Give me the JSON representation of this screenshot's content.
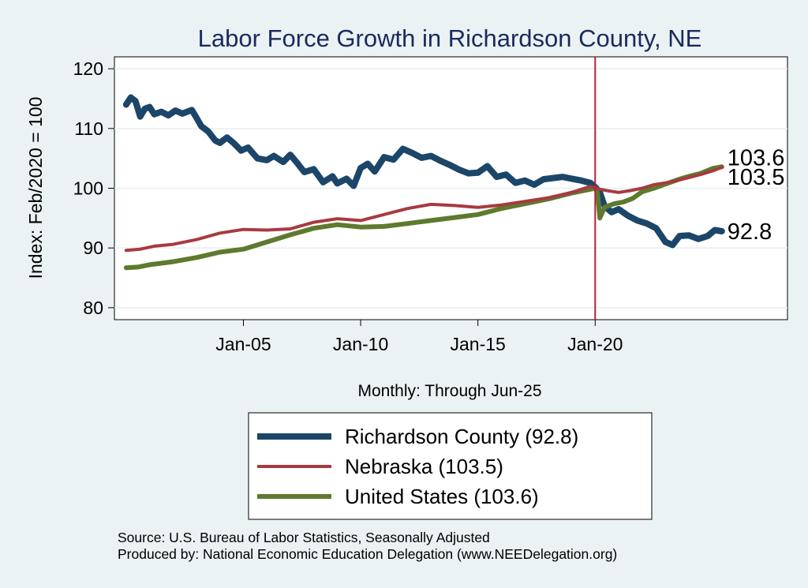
{
  "chart_data": {
    "type": "line",
    "title": "Labor Force Growth in Richardson  County, NE",
    "ylabel": "Index: Feb/2020 = 100",
    "xlabel_note": "Monthly: Through Jun-25",
    "ylim": [
      78,
      122
    ],
    "xlim": [
      1999.5,
      2028.2
    ],
    "yticks": [
      80,
      90,
      100,
      110,
      120
    ],
    "xticks": [
      {
        "value": 2005.0,
        "label": "Jan-05"
      },
      {
        "value": 2010.0,
        "label": "Jan-10"
      },
      {
        "value": 2015.0,
        "label": "Jan-15"
      },
      {
        "value": 2020.0,
        "label": "Jan-20"
      }
    ],
    "reference_line": {
      "x": 2020.0,
      "color": "#b5203a"
    },
    "grid": "horizontal",
    "series": [
      {
        "name": "Richardson  County",
        "end_value_label": "92.8",
        "color": "#1b4669",
        "width": 8,
        "points": [
          [
            2000.0,
            114.0
          ],
          [
            2000.2,
            115.2
          ],
          [
            2000.4,
            114.6
          ],
          [
            2000.6,
            112.0
          ],
          [
            2000.8,
            113.3
          ],
          [
            2001.0,
            113.6
          ],
          [
            2001.2,
            112.4
          ],
          [
            2001.5,
            112.8
          ],
          [
            2001.8,
            112.2
          ],
          [
            2002.1,
            113.0
          ],
          [
            2002.4,
            112.5
          ],
          [
            2002.8,
            113.1
          ],
          [
            2003.0,
            111.8
          ],
          [
            2003.2,
            110.4
          ],
          [
            2003.5,
            109.5
          ],
          [
            2003.8,
            108.0
          ],
          [
            2004.0,
            107.6
          ],
          [
            2004.3,
            108.5
          ],
          [
            2004.6,
            107.5
          ],
          [
            2004.9,
            106.3
          ],
          [
            2005.2,
            106.8
          ],
          [
            2005.6,
            105.0
          ],
          [
            2006.0,
            104.7
          ],
          [
            2006.3,
            105.4
          ],
          [
            2006.7,
            104.4
          ],
          [
            2007.0,
            105.6
          ],
          [
            2007.3,
            104.2
          ],
          [
            2007.6,
            102.7
          ],
          [
            2008.0,
            103.2
          ],
          [
            2008.4,
            101.0
          ],
          [
            2008.8,
            102.0
          ],
          [
            2009.0,
            100.8
          ],
          [
            2009.4,
            101.6
          ],
          [
            2009.7,
            100.4
          ],
          [
            2010.0,
            103.4
          ],
          [
            2010.3,
            104.1
          ],
          [
            2010.6,
            102.8
          ],
          [
            2011.0,
            105.2
          ],
          [
            2011.4,
            104.8
          ],
          [
            2011.8,
            106.6
          ],
          [
            2012.2,
            105.9
          ],
          [
            2012.6,
            105.1
          ],
          [
            2013.0,
            105.4
          ],
          [
            2013.4,
            104.6
          ],
          [
            2013.8,
            103.9
          ],
          [
            2014.2,
            103.1
          ],
          [
            2014.6,
            102.5
          ],
          [
            2015.0,
            102.6
          ],
          [
            2015.4,
            103.7
          ],
          [
            2015.8,
            101.9
          ],
          [
            2016.2,
            102.3
          ],
          [
            2016.6,
            100.9
          ],
          [
            2017.0,
            101.3
          ],
          [
            2017.4,
            100.6
          ],
          [
            2017.8,
            101.5
          ],
          [
            2018.2,
            101.7
          ],
          [
            2018.6,
            101.9
          ],
          [
            2019.0,
            101.6
          ],
          [
            2019.4,
            101.3
          ],
          [
            2019.8,
            100.9
          ],
          [
            2020.0,
            100.2
          ],
          [
            2020.2,
            99.3
          ],
          [
            2020.4,
            97.0
          ],
          [
            2020.7,
            96.0
          ],
          [
            2021.0,
            96.5
          ],
          [
            2021.4,
            95.4
          ],
          [
            2021.8,
            94.6
          ],
          [
            2022.2,
            94.1
          ],
          [
            2022.6,
            93.3
          ],
          [
            2023.0,
            91.0
          ],
          [
            2023.3,
            90.5
          ],
          [
            2023.6,
            92.0
          ],
          [
            2024.0,
            92.1
          ],
          [
            2024.4,
            91.5
          ],
          [
            2024.8,
            92.0
          ],
          [
            2025.1,
            93.0
          ],
          [
            2025.4,
            92.8
          ]
        ]
      },
      {
        "name": "Nebraska",
        "end_value_label": "103.5",
        "color": "#a83a40",
        "width": 4,
        "points": [
          [
            2000.0,
            89.6
          ],
          [
            2000.6,
            89.8
          ],
          [
            2001.2,
            90.3
          ],
          [
            2002.0,
            90.6
          ],
          [
            2003.0,
            91.4
          ],
          [
            2004.0,
            92.5
          ],
          [
            2005.0,
            93.1
          ],
          [
            2006.0,
            93.0
          ],
          [
            2007.0,
            93.2
          ],
          [
            2008.0,
            94.3
          ],
          [
            2009.0,
            94.9
          ],
          [
            2010.0,
            94.6
          ],
          [
            2011.0,
            95.6
          ],
          [
            2012.0,
            96.6
          ],
          [
            2013.0,
            97.3
          ],
          [
            2014.0,
            97.1
          ],
          [
            2015.0,
            96.8
          ],
          [
            2016.0,
            97.2
          ],
          [
            2017.0,
            97.8
          ],
          [
            2018.0,
            98.4
          ],
          [
            2019.0,
            99.3
          ],
          [
            2019.8,
            100.3
          ],
          [
            2020.0,
            100.0
          ],
          [
            2020.5,
            99.6
          ],
          [
            2021.0,
            99.3
          ],
          [
            2021.5,
            99.6
          ],
          [
            2022.0,
            100.0
          ],
          [
            2022.5,
            100.6
          ],
          [
            2023.0,
            100.9
          ],
          [
            2023.5,
            101.3
          ],
          [
            2024.0,
            101.8
          ],
          [
            2024.5,
            102.3
          ],
          [
            2025.0,
            102.9
          ],
          [
            2025.4,
            103.5
          ]
        ]
      },
      {
        "name": "United States",
        "end_value_label": "103.6",
        "color": "#5e7a2e",
        "width": 6,
        "points": [
          [
            2000.0,
            86.7
          ],
          [
            2000.5,
            86.8
          ],
          [
            2001.0,
            87.2
          ],
          [
            2002.0,
            87.7
          ],
          [
            2003.0,
            88.4
          ],
          [
            2004.0,
            89.3
          ],
          [
            2005.0,
            89.8
          ],
          [
            2006.0,
            91.0
          ],
          [
            2007.0,
            92.2
          ],
          [
            2008.0,
            93.3
          ],
          [
            2009.0,
            93.9
          ],
          [
            2010.0,
            93.5
          ],
          [
            2011.0,
            93.6
          ],
          [
            2012.0,
            94.1
          ],
          [
            2013.0,
            94.6
          ],
          [
            2014.0,
            95.1
          ],
          [
            2015.0,
            95.6
          ],
          [
            2016.0,
            96.6
          ],
          [
            2017.0,
            97.4
          ],
          [
            2018.0,
            98.2
          ],
          [
            2019.0,
            99.2
          ],
          [
            2020.0,
            100.0
          ],
          [
            2020.1,
            99.2
          ],
          [
            2020.2,
            95.0
          ],
          [
            2020.4,
            96.8
          ],
          [
            2020.8,
            97.4
          ],
          [
            2021.2,
            97.7
          ],
          [
            2021.6,
            98.3
          ],
          [
            2022.0,
            99.4
          ],
          [
            2022.5,
            100.0
          ],
          [
            2023.0,
            100.7
          ],
          [
            2023.5,
            101.4
          ],
          [
            2024.0,
            102.0
          ],
          [
            2024.5,
            102.5
          ],
          [
            2025.0,
            103.3
          ],
          [
            2025.4,
            103.6
          ]
        ]
      }
    ],
    "legend": {
      "placement": "bottom",
      "entries": [
        {
          "label": "Richardson  County (92.8)",
          "color": "#1b4669",
          "width": 8
        },
        {
          "label": "Nebraska (103.5)",
          "color": "#a83a40",
          "width": 4
        },
        {
          "label": "United States (103.6)",
          "color": "#5e7a2e",
          "width": 6
        }
      ]
    }
  },
  "source": {
    "line1": "Source: U.S. Bureau of Labor Statistics, Seasonally Adjusted",
    "line2": "Produced by: National Economic Education Delegation (www.NEEDelegation.org)"
  }
}
